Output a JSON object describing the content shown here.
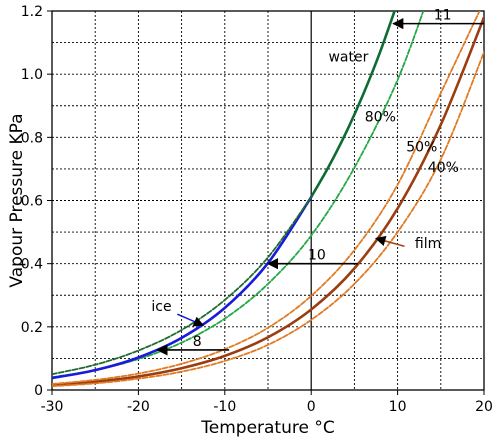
{
  "chart_data": {
    "type": "line",
    "title": "",
    "xlabel": "Temperature °C",
    "ylabel": "Vapour Pressure KPa",
    "xlim": [
      -30,
      20
    ],
    "ylim": [
      0,
      1.2
    ],
    "xticks": [
      -30,
      -20,
      -10,
      0,
      10,
      20
    ],
    "yticks": [
      0,
      0.2,
      0.4,
      0.6,
      0.8,
      1.0,
      1.2
    ],
    "xtick_labels": [
      "-30",
      "-20",
      "-10",
      "0",
      "10",
      "20"
    ],
    "ytick_labels": [
      "0",
      "0.2",
      "0.4",
      "0.6",
      "0.8",
      "1.0",
      "1.2"
    ],
    "grid": true,
    "series": [
      {
        "name": "water",
        "style": "solid",
        "color": "#0e6b33",
        "x": [
          0,
          2,
          4,
          6,
          8,
          10
        ],
        "y": [
          0.611,
          0.706,
          0.813,
          0.935,
          1.072,
          1.228
        ]
      },
      {
        "name": "80%",
        "style": "dashed",
        "color": "#22a845",
        "x": [
          -30,
          -25,
          -20,
          -15,
          -10,
          -5,
          0,
          5,
          10,
          14
        ],
        "y": [
          0.04,
          0.063,
          0.098,
          0.15,
          0.226,
          0.336,
          0.489,
          0.704,
          0.982,
          1.28
        ]
      },
      {
        "name": "ice",
        "style": "solid",
        "color": "#1a1adc",
        "x": [
          -30,
          -25,
          -20,
          -15,
          -10,
          -5,
          0
        ],
        "y": [
          0.038,
          0.063,
          0.103,
          0.165,
          0.26,
          0.402,
          0.611
        ]
      },
      {
        "name": "",
        "style": "dashed",
        "color": "#1f6b2e",
        "x": [
          -30,
          -25,
          -20,
          -15,
          -10,
          -5,
          0
        ],
        "y": [
          0.05,
          0.08,
          0.125,
          0.19,
          0.285,
          0.42,
          0.611
        ]
      },
      {
        "name": "film",
        "style": "solid",
        "color": "#9b3d10",
        "x": [
          -30,
          -25,
          -20,
          -15,
          -10,
          -5,
          0,
          5,
          10,
          15,
          20
        ],
        "y": [
          0.015,
          0.026,
          0.043,
          0.069,
          0.108,
          0.167,
          0.255,
          0.385,
          0.575,
          0.84,
          1.18
        ]
      },
      {
        "name": "50%",
        "style": "dashed",
        "color": "#e07b25",
        "x": [
          -30,
          -25,
          -20,
          -15,
          -10,
          -5,
          0,
          5,
          10,
          15,
          20
        ],
        "y": [
          0.019,
          0.032,
          0.052,
          0.083,
          0.129,
          0.197,
          0.298,
          0.443,
          0.65,
          0.94,
          1.23
        ]
      },
      {
        "name": "40%",
        "style": "dashed",
        "color": "#e07b25",
        "x": [
          -30,
          -25,
          -20,
          -15,
          -10,
          -5,
          0,
          5,
          10,
          15,
          20
        ],
        "y": [
          0.012,
          0.021,
          0.036,
          0.058,
          0.092,
          0.143,
          0.222,
          0.336,
          0.5,
          0.73,
          1.07
        ]
      }
    ],
    "arrows": [
      {
        "label": "11",
        "from": [
          20,
          1.16
        ],
        "to": [
          9.5,
          1.16
        ]
      },
      {
        "label": "10",
        "from": [
          5.4,
          0.4
        ],
        "to": [
          -5,
          0.4
        ]
      },
      {
        "label": "8",
        "from": [
          -9.5,
          0.127
        ],
        "to": [
          -17.8,
          0.127
        ]
      }
    ],
    "annotations": [
      {
        "text": "water",
        "x": 2,
        "y": 1.04
      },
      {
        "text": "80%",
        "x": 6.2,
        "y": 0.85
      },
      {
        "text": "50%",
        "x": 11,
        "y": 0.755
      },
      {
        "text": "40%",
        "x": 13.5,
        "y": 0.69
      },
      {
        "text": "film",
        "x": 12,
        "y": 0.45
      },
      {
        "text": "ice",
        "x": -18.5,
        "y": 0.25
      }
    ],
    "pointers": [
      {
        "name": "film",
        "from": [
          10.8,
          0.455
        ],
        "to": [
          7.5,
          0.48
        ]
      },
      {
        "name": "ice",
        "from": [
          -15.5,
          0.24
        ],
        "to": [
          -12.5,
          0.205
        ]
      }
    ]
  }
}
